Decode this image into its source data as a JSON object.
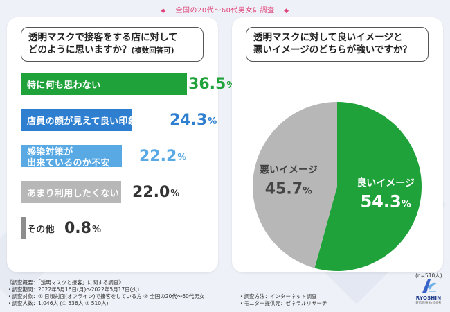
{
  "header": {
    "title": "全国の20代～60代男女に調査",
    "left_mark": "◆",
    "right_mark": "◆"
  },
  "colors": {
    "green": "#1fa23a",
    "blue": "#2e7fd0",
    "light_blue": "#58a9e4",
    "gray": "#b7b7b7",
    "dark_gray": "#8d8d8d",
    "pink": "#e0457b"
  },
  "chart_data": [
    {
      "type": "bar",
      "orientation": "horizontal",
      "title_lines": [
        "透明マスクで接客をする店に対して",
        "どのように思いますか？"
      ],
      "title_note": "(複数回答可)",
      "unit": "%",
      "xlim": [
        0,
        40
      ],
      "categories": [
        [
          "特に何も思わない"
        ],
        [
          "店員の顔が見えて良い印象"
        ],
        [
          "感染対策が",
          "出来ているのか不安"
        ],
        [
          "あまり利用したくない"
        ],
        [
          "その他"
        ]
      ],
      "values": [
        36.5,
        24.3,
        22.2,
        22.0,
        0.8
      ],
      "value_labels": [
        "36.5",
        "24.3",
        "22.2",
        "22.0",
        "0.8"
      ],
      "bar_colors": [
        "#1fa23a",
        "#2e7fd0",
        "#58a9e4",
        "#b7b7b7",
        "#8d8d8d"
      ]
    },
    {
      "type": "pie",
      "title_lines": [
        "透明マスクに対して良いイメージと",
        "悪いイメージのどちらが強いですか？"
      ],
      "unit": "%",
      "labels": [
        "良いイメージ",
        "悪いイメージ"
      ],
      "values": [
        54.3,
        45.7
      ],
      "value_labels": [
        "54.3",
        "45.7"
      ],
      "slice_colors": [
        "#1fa23a",
        "#b7b7b7"
      ],
      "sample_note": "(n=510人)"
    }
  ],
  "footer": {
    "lines_left": [
      "《調査概要：「透明マスクと接客」に関する調査》",
      "・調査期間：2022年5月16日(月)～2022年5月17日(火)",
      "・調査対象：① 日頃対面(オフライン)で接客をしている方 ② 全国の20代～60代男女",
      "・調査人数：1,046人 (① 536人 ② 510人)"
    ],
    "lines_right": [
      "・調査方法：インターネット調査",
      "・モニター提供元：ゼネラルリサーチ"
    ]
  },
  "logo": {
    "name": "RYOSHIN",
    "sub": "菱信商事 株式会社"
  }
}
